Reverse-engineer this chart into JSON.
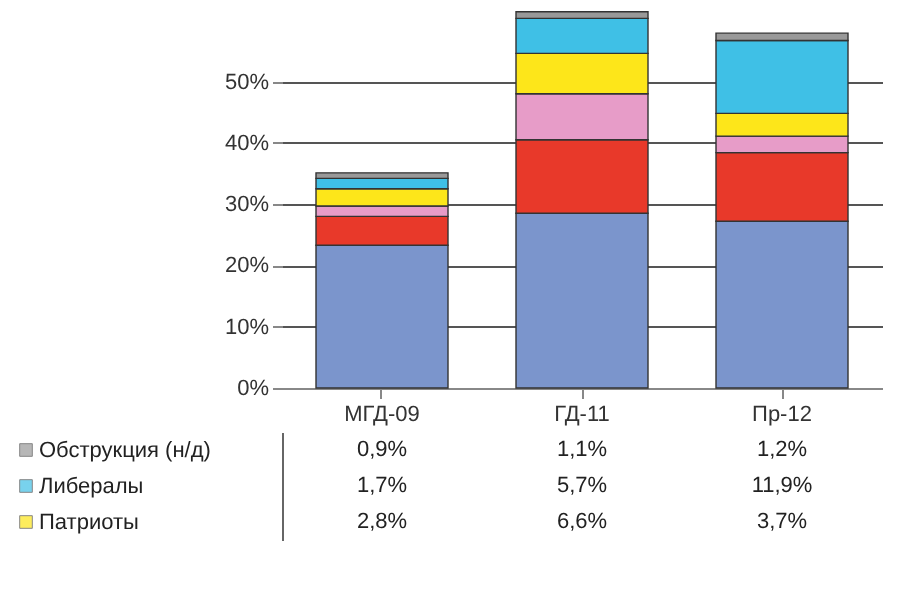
{
  "chart_data": {
    "type": "bar",
    "stacked": true,
    "categories": [
      "МГД-09",
      "ГД-11",
      "Пр-12"
    ],
    "ylim": [
      0,
      62
    ],
    "yticks": [
      {
        "value": 0,
        "label": "0%"
      },
      {
        "value": 10,
        "label": "10%"
      },
      {
        "value": 20,
        "label": "20%"
      },
      {
        "value": 30,
        "label": "30%"
      },
      {
        "value": 40,
        "label": "40%"
      },
      {
        "value": 50,
        "label": "50%"
      }
    ],
    "grid": "y",
    "legend": "bottom",
    "series": [
      {
        "color": "#7b95cc",
        "values": [
          23.3,
          28.5,
          27.2
        ]
      },
      {
        "color": "#e8392a",
        "values": [
          4.7,
          12.0,
          11.2
        ]
      },
      {
        "color": "#e79cc8",
        "values": [
          1.7,
          7.5,
          2.7
        ]
      },
      {
        "name": "Патриоты",
        "color": "#fde61a",
        "values": [
          2.8,
          6.6,
          3.7
        ],
        "value_labels": [
          "2,8%",
          "6,6%",
          "3,7%"
        ]
      },
      {
        "name": "Либералы",
        "color": "#3fc0e6",
        "values": [
          1.7,
          5.7,
          11.9
        ],
        "value_labels": [
          "1,7%",
          "5,7%",
          "11,9%"
        ]
      },
      {
        "name": "Обструкция (н/д)",
        "color": "#999999",
        "values": [
          0.9,
          1.1,
          1.2
        ],
        "value_labels": [
          "0,9%",
          "1,1%",
          "1,2%"
        ]
      }
    ]
  }
}
